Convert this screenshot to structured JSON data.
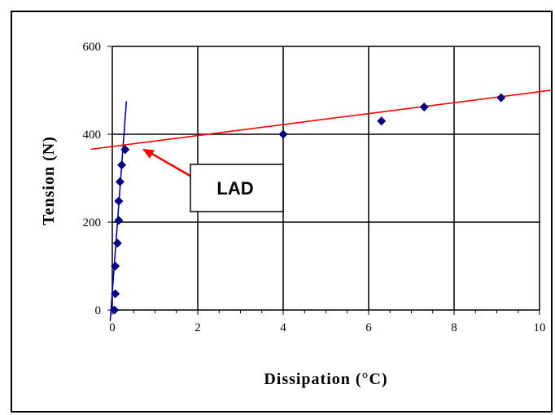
{
  "chart_data": {
    "type": "scatter",
    "title": "",
    "xlabel": "Dissipation (°C)",
    "ylabel": "Tension (N)",
    "xlim": [
      0,
      10
    ],
    "ylim": [
      0,
      600
    ],
    "xticks": [
      0,
      2,
      4,
      6,
      8,
      10
    ],
    "yticks": [
      0,
      200,
      400,
      600
    ],
    "grid": true,
    "series": [
      {
        "marker": "diamond",
        "color": "#000080",
        "points": [
          {
            "x": 0.05,
            "y": 0
          },
          {
            "x": 0.07,
            "y": 37
          },
          {
            "x": 0.07,
            "y": 100
          },
          {
            "x": 0.12,
            "y": 152
          },
          {
            "x": 0.15,
            "y": 204
          },
          {
            "x": 0.15,
            "y": 248
          },
          {
            "x": 0.18,
            "y": 292
          },
          {
            "x": 0.22,
            "y": 330
          },
          {
            "x": 0.3,
            "y": 365
          },
          {
            "x": 4.0,
            "y": 400
          },
          {
            "x": 6.3,
            "y": 430
          },
          {
            "x": 7.3,
            "y": 462
          },
          {
            "x": 9.1,
            "y": 483
          }
        ]
      }
    ],
    "trendlines": [
      {
        "color": "#0000cc",
        "from": {
          "x": -0.05,
          "y": -25
        },
        "to": {
          "x": 0.33,
          "y": 475
        }
      },
      {
        "color": "#ff0000",
        "from": {
          "x": -0.5,
          "y": 366
        },
        "to": {
          "x": 10.9,
          "y": 508
        }
      }
    ],
    "annotation": {
      "text": "LAD",
      "arrow_color": "#ff0000",
      "points_to": {
        "x": 0.7,
        "y": 367
      }
    }
  }
}
